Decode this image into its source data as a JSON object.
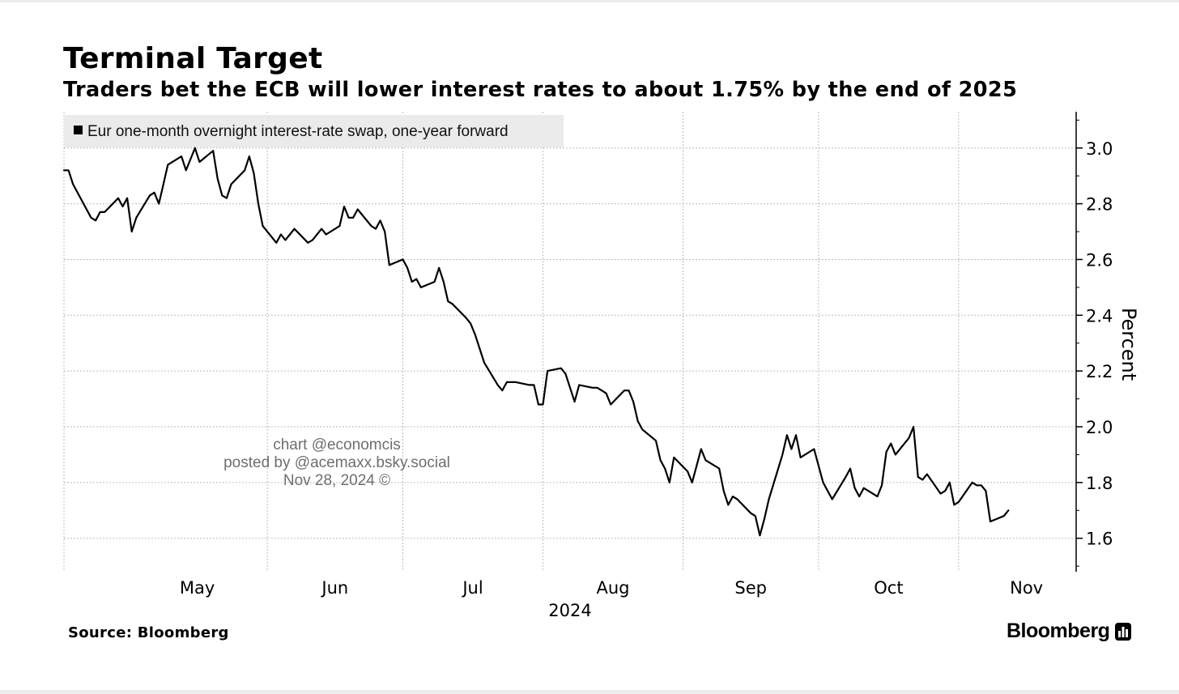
{
  "header": {
    "title": "Terminal Target",
    "subtitle": "Traders bet the ECB will lower interest rates to about 1.75% by the end of 2025"
  },
  "footer": {
    "source": "Source: Bloomberg",
    "brand": "Bloomberg"
  },
  "watermark": {
    "line1": "chart @economcis",
    "line2": "posted by @acemaxx.bsky.social",
    "line3": "Nov 28, 2024 ©"
  },
  "colors": {
    "line": "#000000",
    "grid": "#bdbdbd",
    "legend_bg": "#ebebeb",
    "watermark": "#6e6e6e"
  },
  "chart_data": {
    "type": "line",
    "title": "Terminal Target",
    "subtitle": "Traders bet the ECB will lower interest rates to about 1.75% by the end of 2025",
    "ylabel": "Percent",
    "ylim": [
      1.48,
      3.13
    ],
    "y_ticks": [
      "1.6",
      "1.8",
      "2.0",
      "2.2",
      "2.4",
      "2.6",
      "2.8",
      "3.0"
    ],
    "y_axis_side": "right",
    "xlim": [
      "2024-04-17",
      "2024-11-27"
    ],
    "x_ticks": [
      {
        "date": "2024-05-01",
        "label": "May"
      },
      {
        "date": "2024-06-01",
        "label": "Jun"
      },
      {
        "date": "2024-07-01",
        "label": "Jul"
      },
      {
        "date": "2024-08-01",
        "label": "Aug"
      },
      {
        "date": "2024-09-01",
        "label": "Sep"
      },
      {
        "date": "2024-10-01",
        "label": "Oct"
      },
      {
        "date": "2024-11-01",
        "label": "Nov"
      }
    ],
    "x_year_label": "2024",
    "grid": true,
    "legend_position": "top-left",
    "series": [
      {
        "name": "Eur one-month overnight interest-rate swap, one-year forward",
        "color": "#000000",
        "points": [
          [
            "2024-04-17",
            2.92
          ],
          [
            "2024-04-18",
            2.92
          ],
          [
            "2024-04-19",
            2.87
          ],
          [
            "2024-04-22",
            2.78
          ],
          [
            "2024-04-23",
            2.75
          ],
          [
            "2024-04-24",
            2.74
          ],
          [
            "2024-04-25",
            2.77
          ],
          [
            "2024-04-26",
            2.77
          ],
          [
            "2024-04-29",
            2.82
          ],
          [
            "2024-04-30",
            2.79
          ],
          [
            "2024-05-01",
            2.82
          ],
          [
            "2024-05-02",
            2.7
          ],
          [
            "2024-05-03",
            2.75
          ],
          [
            "2024-05-06",
            2.83
          ],
          [
            "2024-05-07",
            2.84
          ],
          [
            "2024-05-08",
            2.8
          ],
          [
            "2024-05-09",
            2.87
          ],
          [
            "2024-05-10",
            2.94
          ],
          [
            "2024-05-13",
            2.97
          ],
          [
            "2024-05-14",
            2.92
          ],
          [
            "2024-05-15",
            2.96
          ],
          [
            "2024-05-16",
            3.0
          ],
          [
            "2024-05-17",
            2.95
          ],
          [
            "2024-05-20",
            2.99
          ],
          [
            "2024-05-21",
            2.89
          ],
          [
            "2024-05-22",
            2.83
          ],
          [
            "2024-05-23",
            2.82
          ],
          [
            "2024-05-24",
            2.87
          ],
          [
            "2024-05-27",
            2.92
          ],
          [
            "2024-05-28",
            2.97
          ],
          [
            "2024-05-29",
            2.91
          ],
          [
            "2024-05-30",
            2.8
          ],
          [
            "2024-05-31",
            2.72
          ],
          [
            "2024-06-03",
            2.66
          ],
          [
            "2024-06-04",
            2.69
          ],
          [
            "2024-06-05",
            2.67
          ],
          [
            "2024-06-06",
            2.69
          ],
          [
            "2024-06-07",
            2.71
          ],
          [
            "2024-06-10",
            2.66
          ],
          [
            "2024-06-11",
            2.67
          ],
          [
            "2024-06-12",
            2.69
          ],
          [
            "2024-06-13",
            2.71
          ],
          [
            "2024-06-14",
            2.69
          ],
          [
            "2024-06-17",
            2.72
          ],
          [
            "2024-06-18",
            2.79
          ],
          [
            "2024-06-19",
            2.75
          ],
          [
            "2024-06-20",
            2.75
          ],
          [
            "2024-06-21",
            2.78
          ],
          [
            "2024-06-24",
            2.72
          ],
          [
            "2024-06-25",
            2.71
          ],
          [
            "2024-06-26",
            2.74
          ],
          [
            "2024-06-27",
            2.7
          ],
          [
            "2024-06-28",
            2.58
          ],
          [
            "2024-07-01",
            2.6
          ],
          [
            "2024-07-02",
            2.57
          ],
          [
            "2024-07-03",
            2.52
          ],
          [
            "2024-07-04",
            2.53
          ],
          [
            "2024-07-05",
            2.5
          ],
          [
            "2024-07-08",
            2.52
          ],
          [
            "2024-07-09",
            2.57
          ],
          [
            "2024-07-10",
            2.52
          ],
          [
            "2024-07-11",
            2.45
          ],
          [
            "2024-07-12",
            2.44
          ],
          [
            "2024-07-15",
            2.39
          ],
          [
            "2024-07-16",
            2.37
          ],
          [
            "2024-07-17",
            2.33
          ],
          [
            "2024-07-18",
            2.28
          ],
          [
            "2024-07-19",
            2.23
          ],
          [
            "2024-07-22",
            2.15
          ],
          [
            "2024-07-23",
            2.13
          ],
          [
            "2024-07-24",
            2.16
          ],
          [
            "2024-07-25",
            2.16
          ],
          [
            "2024-07-26",
            2.16
          ],
          [
            "2024-07-29",
            2.15
          ],
          [
            "2024-07-30",
            2.15
          ],
          [
            "2024-07-31",
            2.08
          ],
          [
            "2024-08-01",
            2.08
          ],
          [
            "2024-08-02",
            2.2
          ],
          [
            "2024-08-05",
            2.21
          ],
          [
            "2024-08-06",
            2.19
          ],
          [
            "2024-08-07",
            2.14
          ],
          [
            "2024-08-08",
            2.09
          ],
          [
            "2024-08-09",
            2.15
          ],
          [
            "2024-08-12",
            2.14
          ],
          [
            "2024-08-13",
            2.14
          ],
          [
            "2024-08-14",
            2.13
          ],
          [
            "2024-08-15",
            2.12
          ],
          [
            "2024-08-16",
            2.08
          ],
          [
            "2024-08-19",
            2.13
          ],
          [
            "2024-08-20",
            2.13
          ],
          [
            "2024-08-21",
            2.09
          ],
          [
            "2024-08-22",
            2.02
          ],
          [
            "2024-08-23",
            1.99
          ],
          [
            "2024-08-26",
            1.95
          ],
          [
            "2024-08-27",
            1.88
          ],
          [
            "2024-08-28",
            1.85
          ],
          [
            "2024-08-29",
            1.8
          ],
          [
            "2024-08-30",
            1.89
          ],
          [
            "2024-09-02",
            1.84
          ],
          [
            "2024-09-03",
            1.8
          ],
          [
            "2024-09-04",
            1.86
          ],
          [
            "2024-09-05",
            1.92
          ],
          [
            "2024-09-06",
            1.88
          ],
          [
            "2024-09-09",
            1.85
          ],
          [
            "2024-09-10",
            1.77
          ],
          [
            "2024-09-11",
            1.72
          ],
          [
            "2024-09-12",
            1.75
          ],
          [
            "2024-09-13",
            1.74
          ],
          [
            "2024-09-16",
            1.69
          ],
          [
            "2024-09-17",
            1.68
          ],
          [
            "2024-09-18",
            1.61
          ],
          [
            "2024-09-19",
            1.67
          ],
          [
            "2024-09-20",
            1.74
          ],
          [
            "2024-09-23",
            1.9
          ],
          [
            "2024-09-24",
            1.97
          ],
          [
            "2024-09-25",
            1.92
          ],
          [
            "2024-09-26",
            1.97
          ],
          [
            "2024-09-27",
            1.89
          ],
          [
            "2024-09-30",
            1.92
          ],
          [
            "2024-10-01",
            1.86
          ],
          [
            "2024-10-02",
            1.8
          ],
          [
            "2024-10-03",
            1.77
          ],
          [
            "2024-10-04",
            1.74
          ],
          [
            "2024-10-07",
            1.82
          ],
          [
            "2024-10-08",
            1.85
          ],
          [
            "2024-10-09",
            1.78
          ],
          [
            "2024-10-10",
            1.75
          ],
          [
            "2024-10-11",
            1.78
          ],
          [
            "2024-10-14",
            1.75
          ],
          [
            "2024-10-15",
            1.79
          ],
          [
            "2024-10-16",
            1.91
          ],
          [
            "2024-10-17",
            1.94
          ],
          [
            "2024-10-18",
            1.9
          ],
          [
            "2024-10-21",
            1.96
          ],
          [
            "2024-10-22",
            2.0
          ],
          [
            "2024-10-23",
            1.82
          ],
          [
            "2024-10-24",
            1.81
          ],
          [
            "2024-10-25",
            1.83
          ],
          [
            "2024-10-28",
            1.76
          ],
          [
            "2024-10-29",
            1.77
          ],
          [
            "2024-10-30",
            1.8
          ],
          [
            "2024-10-31",
            1.72
          ],
          [
            "2024-11-01",
            1.73
          ],
          [
            "2024-11-04",
            1.8
          ],
          [
            "2024-11-05",
            1.79
          ],
          [
            "2024-11-06",
            1.79
          ],
          [
            "2024-11-07",
            1.77
          ],
          [
            "2024-11-08",
            1.66
          ],
          [
            "2024-11-11",
            1.68
          ],
          [
            "2024-11-12",
            1.7
          ]
        ]
      }
    ]
  }
}
